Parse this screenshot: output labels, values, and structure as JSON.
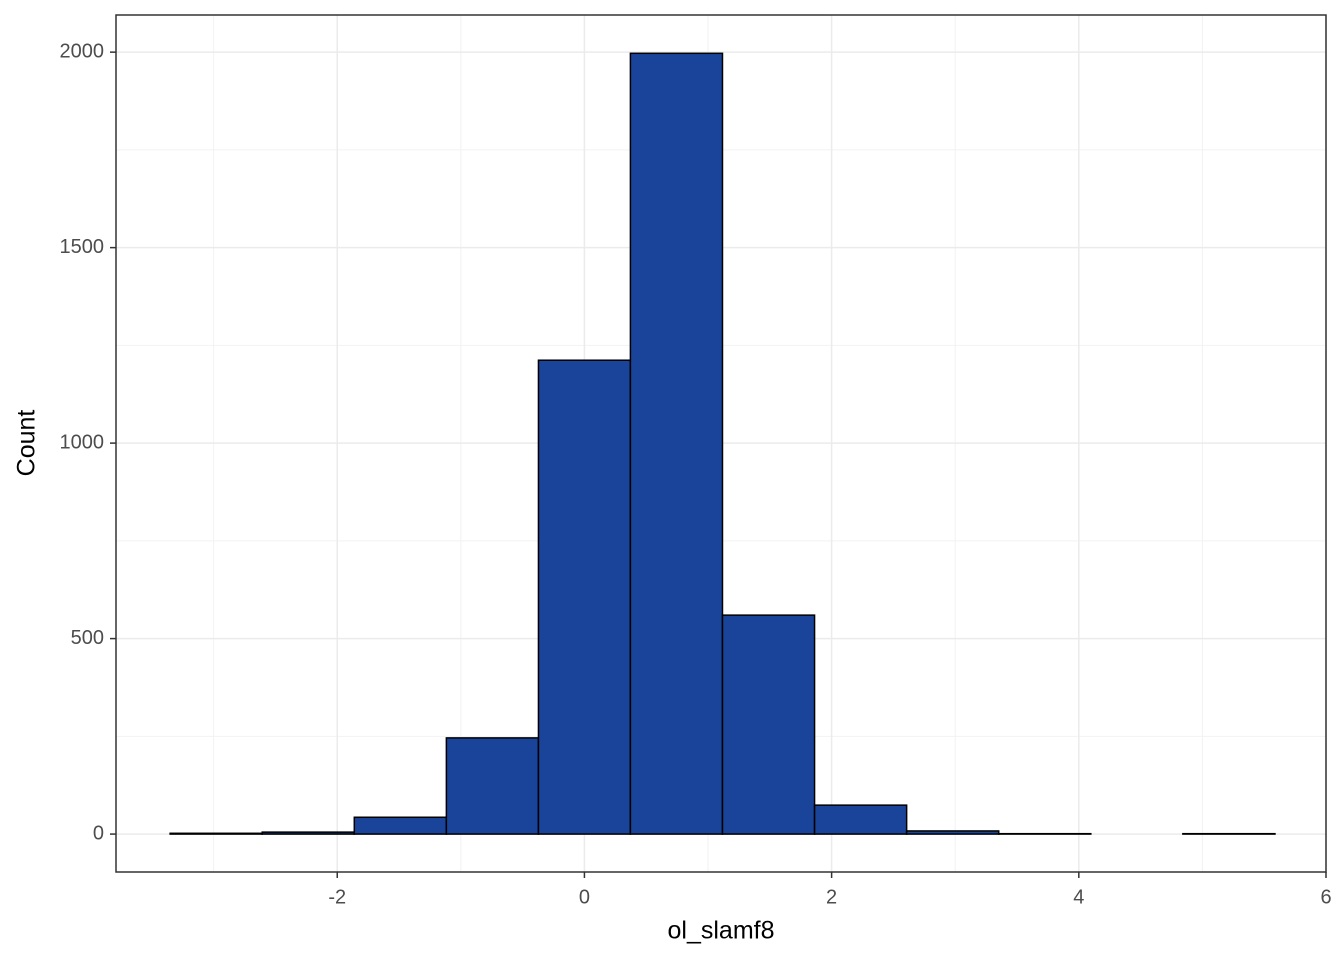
{
  "chart_data": {
    "type": "histogram",
    "x_label": "ol_slamf8",
    "y_label": "Count",
    "bins": [
      -3.352,
      -2.607,
      -1.862,
      -1.117,
      -0.372,
      0.372,
      1.117,
      1.862,
      2.607,
      3.352,
      4.097,
      4.842,
      5.587
    ],
    "values": [
      2,
      5,
      43,
      246,
      1212,
      1997,
      560,
      74,
      8,
      1,
      0,
      1
    ],
    "color": "#1a4499",
    "xlim": [
      -3.79,
      6.0
    ],
    "ylim": [
      -97,
      2095
    ],
    "xticks": [
      -2,
      0,
      2,
      4,
      6
    ],
    "yticks": [
      0,
      500,
      1000,
      1500,
      2000
    ],
    "xminor": [
      -3,
      -1,
      1,
      3,
      5
    ],
    "yminor": [
      250,
      750,
      1250,
      1750
    ],
    "grid": true
  }
}
